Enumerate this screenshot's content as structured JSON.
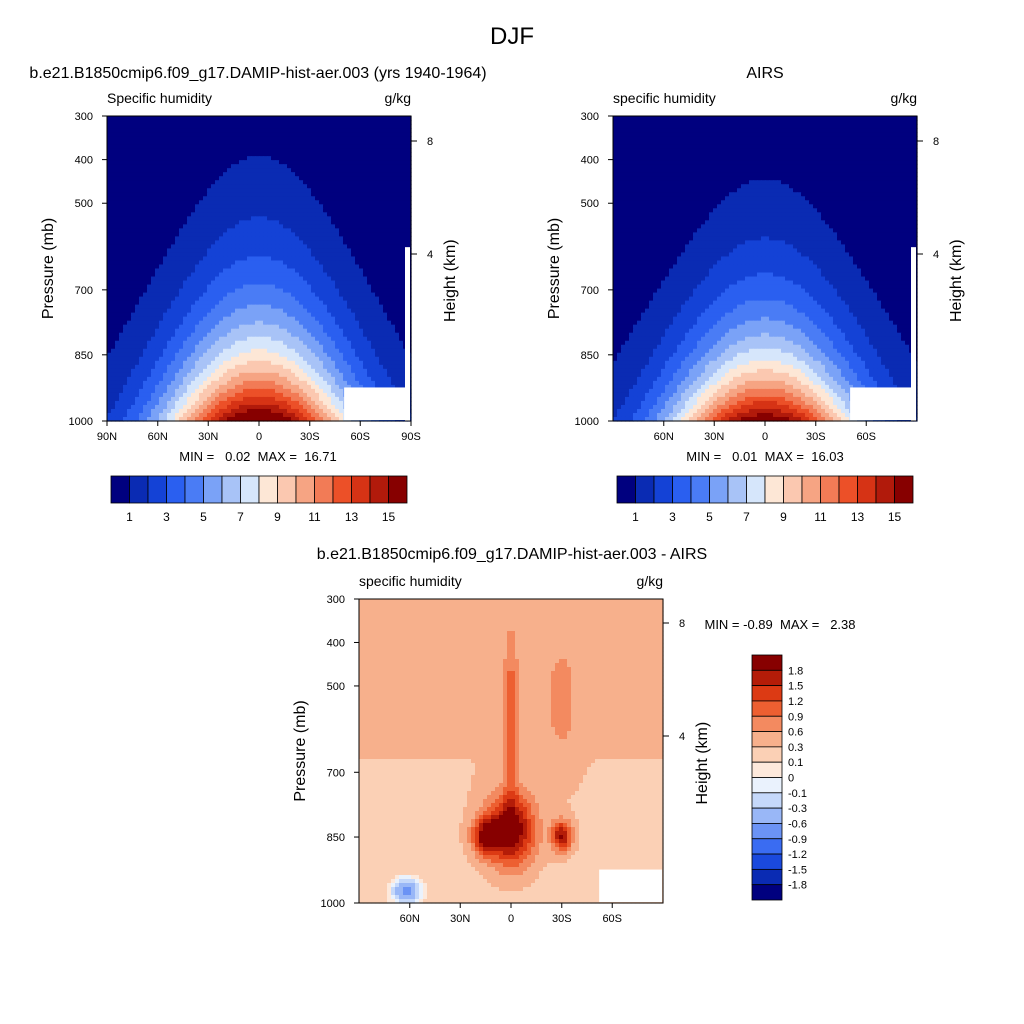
{
  "figure": {
    "title": "DJF"
  },
  "chart_data": [
    {
      "type": "heatmap",
      "title": "b.e21.B1850cmip6.f09_g17.DAMIP-hist-aer.003 (yrs 1940-1964)",
      "left_title": "Specific humidity",
      "units": "g/kg",
      "ylabel": "Pressure (mb)",
      "y2label": "Height (km)",
      "x_ticks": [
        "90N",
        "60N",
        "30N",
        "0",
        "30S",
        "60S",
        "90S"
      ],
      "y_ticks": [
        "300",
        "400",
        "500",
        "700",
        "850",
        "1000"
      ],
      "y2_ticks": [
        "8",
        "4"
      ],
      "ylim": [
        1000,
        300
      ],
      "xlim": [
        90,
        -90
      ],
      "min_max_label": "MIN =   0.02  MAX =  16.71",
      "stats": {
        "min": 0.02,
        "max": 16.71
      },
      "colorbar": {
        "orientation": "horizontal",
        "levels": 16,
        "labels": [
          "1",
          "3",
          "5",
          "7",
          "9",
          "11",
          "13",
          "15"
        ]
      },
      "pattern": {
        "peak_lat": 0,
        "peak_value": 16.7,
        "top_extent_mb": 390
      }
    },
    {
      "type": "heatmap",
      "title": "AIRS",
      "left_title": "specific humidity",
      "units": "g/kg",
      "ylabel": "Pressure (mb)",
      "y2label": "Height (km)",
      "x_ticks": [
        "60N",
        "30N",
        "0",
        "30S",
        "60S"
      ],
      "y_ticks": [
        "300",
        "400",
        "500",
        "700",
        "850",
        "1000"
      ],
      "y2_ticks": [
        "8",
        "4"
      ],
      "ylim": [
        1000,
        300
      ],
      "min_max_label": "MIN =   0.01  MAX =  16.03",
      "stats": {
        "min": 0.01,
        "max": 16.03
      },
      "colorbar": {
        "orientation": "horizontal",
        "levels": 16,
        "labels": [
          "1",
          "3",
          "5",
          "7",
          "9",
          "11",
          "13",
          "15"
        ]
      },
      "pattern": {
        "peak_lat": 0,
        "peak_value": 16.0,
        "top_extent_mb": 420
      }
    },
    {
      "type": "heatmap",
      "title": "b.e21.B1850cmip6.f09_g17.DAMIP-hist-aer.003 - AIRS",
      "left_title": "specific humidity",
      "units": "g/kg",
      "ylabel": "Pressure (mb)",
      "y2label": "Height (km)",
      "x_ticks": [
        "60N",
        "30N",
        "0",
        "30S",
        "60S"
      ],
      "y_ticks": [
        "300",
        "400",
        "500",
        "700",
        "850",
        "1000"
      ],
      "y2_ticks": [
        "8",
        "4"
      ],
      "ylim": [
        1000,
        300
      ],
      "min_max_label": "MIN = -0.89  MAX =   2.38",
      "stats": {
        "min": -0.89,
        "max": 2.38
      },
      "colorbar": {
        "orientation": "vertical",
        "labels": [
          "1.8",
          "1.5",
          "1.2",
          "0.9",
          "0.6",
          "0.3",
          "0.1",
          "0",
          "-0.1",
          "-0.3",
          "-0.6",
          "-0.9",
          "-1.2",
          "-1.5",
          "-1.8"
        ]
      },
      "pattern": {
        "max_near_mb": 850,
        "max_lats": [
          15,
          0,
          -30
        ]
      }
    }
  ],
  "colors": {
    "blue_red_16": [
      "#00007f",
      "#0a2bb3",
      "#1442d6",
      "#2a5ff0",
      "#4a7cf5",
      "#7aa2f7",
      "#a8c3f7",
      "#d6e6fb",
      "#fde7d6",
      "#fbc8b0",
      "#f6a483",
      "#f27b56",
      "#ec5028",
      "#d63315",
      "#b11a0b",
      "#870000"
    ],
    "diff_16": [
      "#00007f",
      "#0a2bb3",
      "#1a49dd",
      "#3a6cf2",
      "#6b93f5",
      "#99b7f7",
      "#c5d8fa",
      "#eaf2fd",
      "#fde9dc",
      "#fbd0b5",
      "#f7b08c",
      "#f38a60",
      "#ed5f31",
      "#dc3a14",
      "#b41c08",
      "#870000"
    ]
  }
}
